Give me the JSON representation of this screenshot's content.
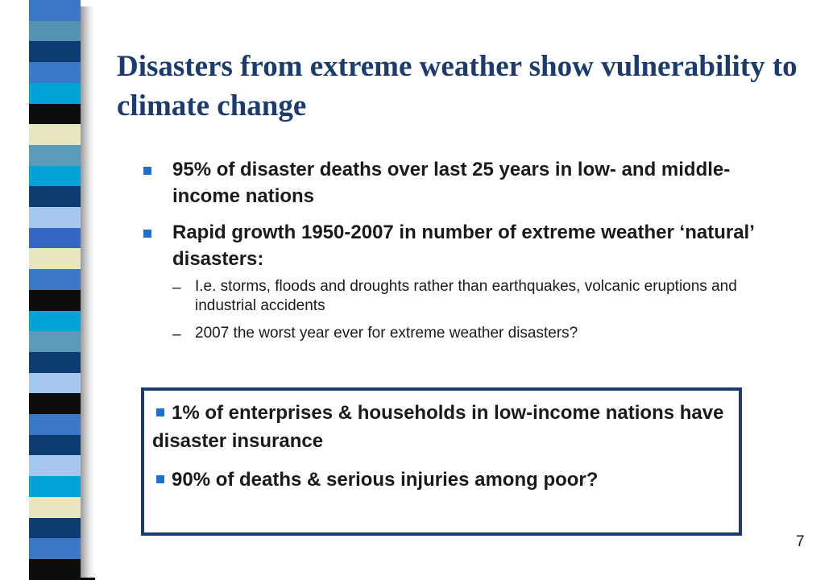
{
  "slide": {
    "title": "Disasters from extreme weather show vulnerability to climate change",
    "bullets": [
      {
        "text": "95% of disaster deaths over last 25 years in low- and middle-income nations",
        "subitems": []
      },
      {
        "text": "Rapid growth 1950-2007 in number of extreme weather ‘natural’ disasters:",
        "subitems": [
          "I.e. storms, floods and droughts rather than earthquakes, volcanic eruptions and industrial accidents",
          "2007 the worst year ever for extreme weather disasters?"
        ]
      }
    ],
    "callout": [
      "1% of enterprises & households in low-income nations have disaster insurance",
      "90% of deaths & serious injuries among poor?"
    ],
    "page_number": "7",
    "sub_marker": "–"
  },
  "colors": {
    "title": "#1c3b6e",
    "bullet_marker": "#1f6fd1",
    "callout_border": "#1c3b6e"
  },
  "decor": {
    "stripe_colors": [
      "#3b78c4",
      "#5392b0",
      "#0d3c73",
      "#3a78c9",
      "#00a3d8",
      "#0d0d0d",
      "#e7e6be",
      "#5b9bb8",
      "#00a3d8",
      "#0d3c73",
      "#a6c8ee",
      "#3566c4",
      "#e7e6be",
      "#3b78c4",
      "#0d0d0d",
      "#00a3d8",
      "#5b9bb8",
      "#0d3c73",
      "#a6c8ee",
      "#0d0d0d",
      "#3b78c4",
      "#0d3c73",
      "#a6c8ee",
      "#00a3d8",
      "#e7e6be",
      "#0d3c73",
      "#3b78c4",
      "#0d0d0d"
    ]
  }
}
